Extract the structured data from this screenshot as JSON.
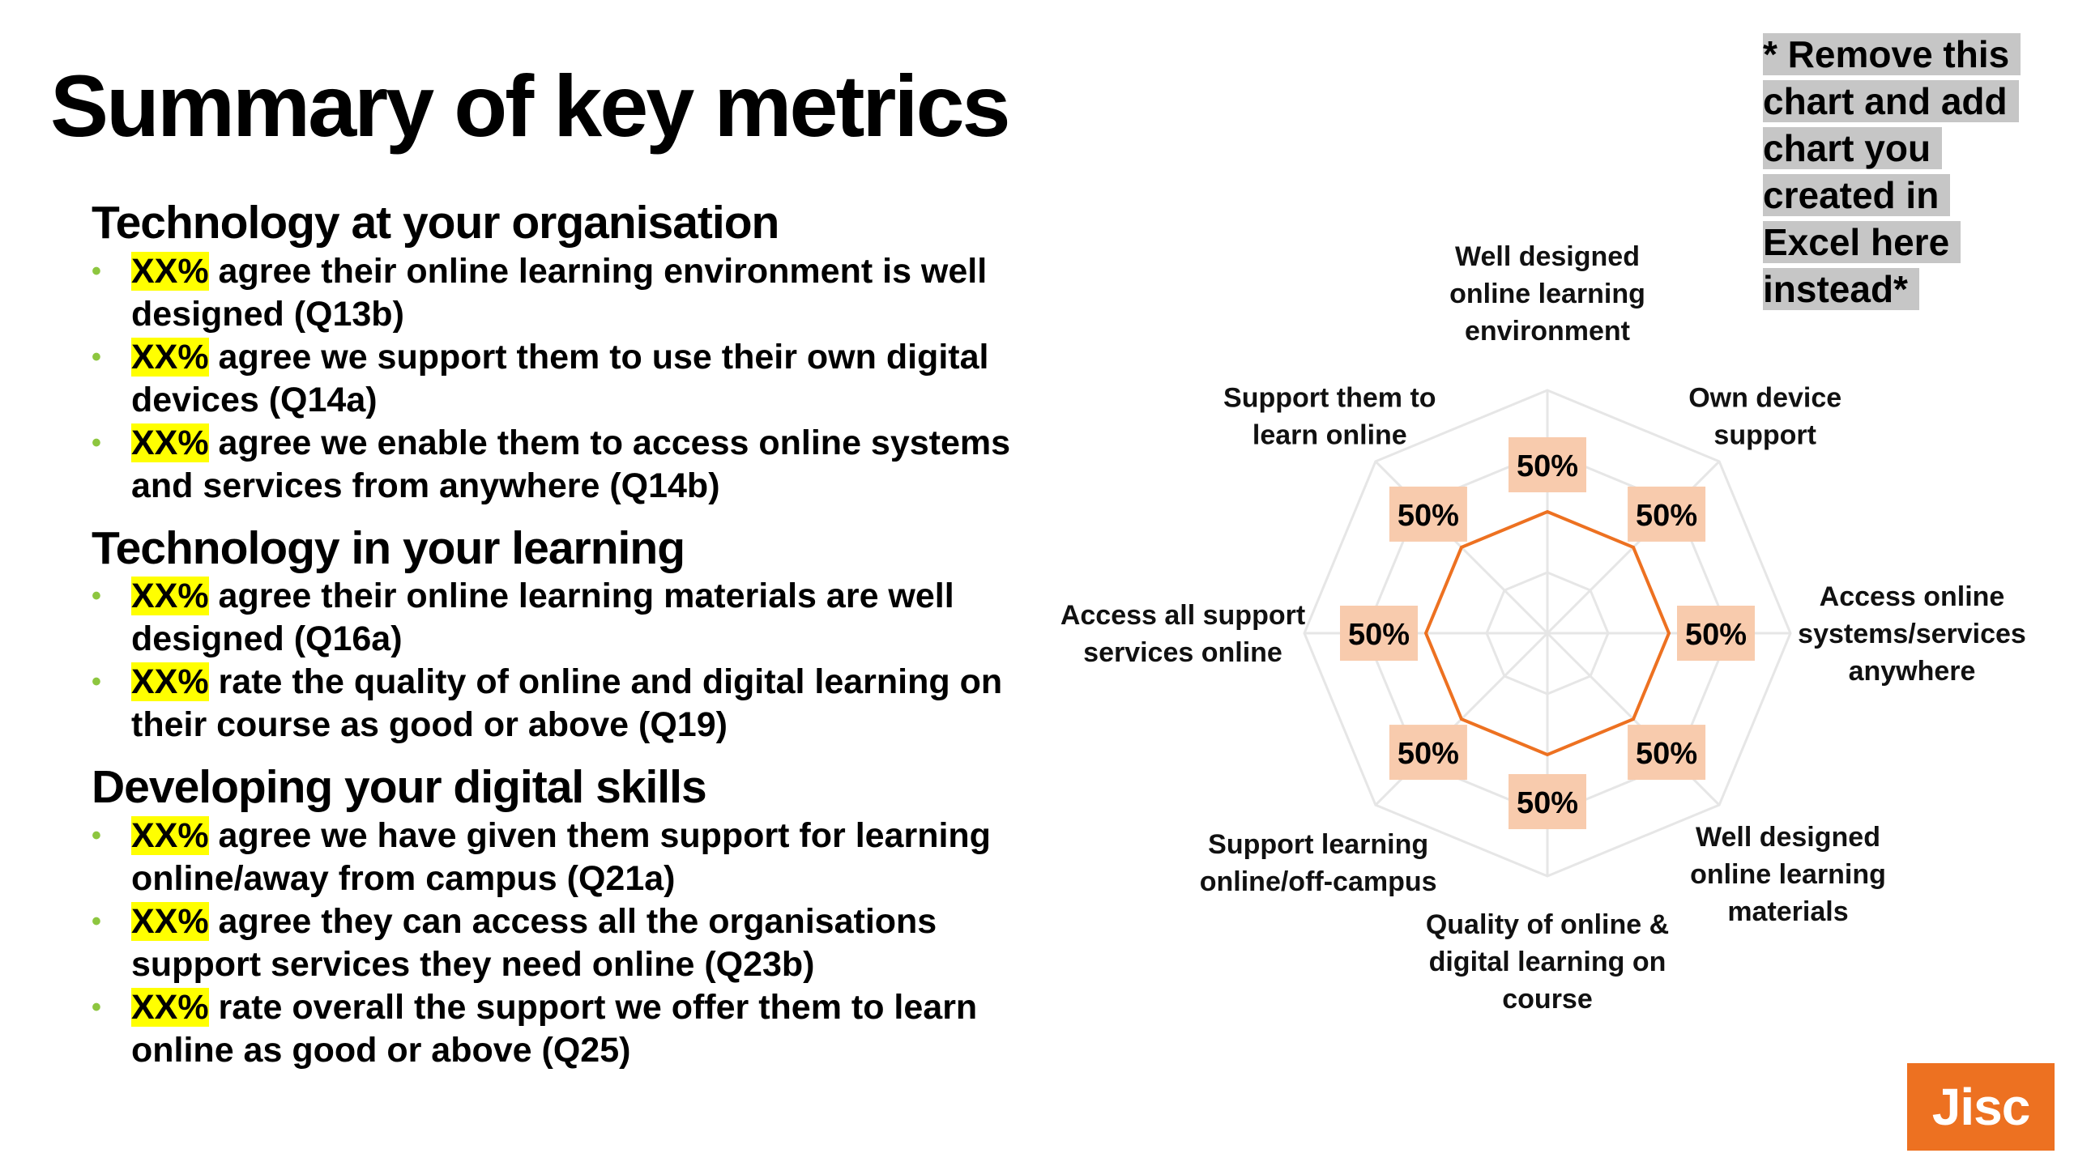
{
  "slide": {
    "title": "Summary of key metrics",
    "note": "* Remove this chart and add chart you created in Excel here instead*",
    "logo_text": "Jisc"
  },
  "sections": [
    {
      "heading": "Technology at your organisation",
      "bullets": [
        {
          "highlight": "XX%",
          "text": " agree their online learning environment is well designed (Q13b)"
        },
        {
          "highlight": "XX%",
          "text": " agree we support them to use their own digital devices (Q14a)"
        },
        {
          "highlight": "XX%",
          "text": " agree we enable them to access online systems and services from anywhere (Q14b)"
        }
      ]
    },
    {
      "heading": "Technology in your learning",
      "bullets": [
        {
          "highlight": "XX%",
          "text": " agree their online learning materials are well designed (Q16a)"
        },
        {
          "highlight": "XX%",
          "text": " rate the quality of online and digital learning on their course as good or above (Q19)"
        }
      ]
    },
    {
      "heading": "Developing your digital skills",
      "bullets": [
        {
          "highlight": "XX%",
          "text": " agree we have given them support for learning online/away from campus (Q21a)"
        },
        {
          "highlight": "XX%",
          "text": " agree they can access all the organisations support services they need online (Q23b)"
        },
        {
          "highlight": "XX%",
          "text": " rate overall the support we offer them to learn online as good or above (Q25)"
        }
      ]
    }
  ],
  "chart_data": {
    "type": "radar",
    "categories": [
      "Well designed online learning environment",
      "Own device support",
      "Access online systems/services anywhere",
      "Well designed online learning materials",
      "Quality of online & digital learning on course",
      "Support learning online/off-campus",
      "Access all support services online",
      "Support them to learn online"
    ],
    "values": [
      50,
      50,
      50,
      50,
      50,
      50,
      50,
      50
    ],
    "data_labels": [
      "50%",
      "50%",
      "50%",
      "50%",
      "50%",
      "50%",
      "50%",
      "50%"
    ],
    "rlim": [
      0,
      100
    ],
    "grid_rings": 4,
    "series_color": "#ed7121",
    "label_bg_color": "#f8cbad",
    "grid_color": "#e6e6e6"
  },
  "colors": {
    "highlight": "#ffff00",
    "bullet": "#8dc63f",
    "note_bg": "#c6c6c6",
    "brand": "#ed7121"
  }
}
